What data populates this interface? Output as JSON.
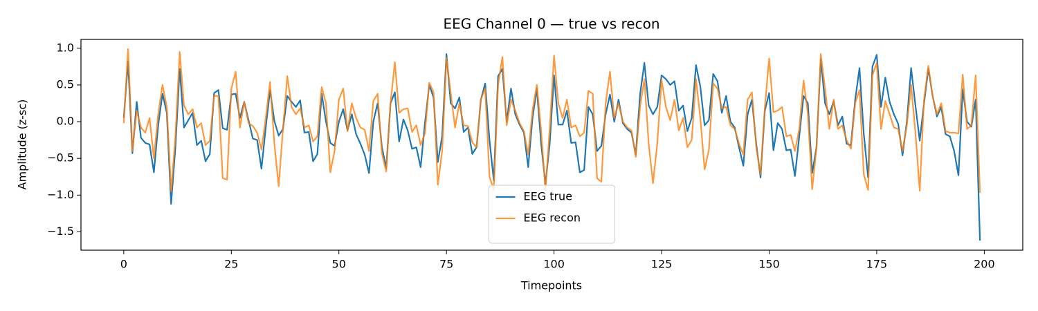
{
  "chart_data": {
    "type": "line",
    "title": "EEG Channel 0 — true vs recon",
    "xlabel": "Timepoints",
    "ylabel": "Amplitude (z-sc)",
    "x": [
      0,
      1,
      2,
      3,
      4,
      5,
      6,
      7,
      8,
      9,
      10,
      11,
      12,
      13,
      14,
      15,
      16,
      17,
      18,
      19,
      20,
      21,
      22,
      23,
      24,
      25,
      26,
      27,
      28,
      29,
      30,
      31,
      32,
      33,
      34,
      35,
      36,
      37,
      38,
      39,
      40,
      41,
      42,
      43,
      44,
      45,
      46,
      47,
      48,
      49,
      50,
      51,
      52,
      53,
      54,
      55,
      56,
      57,
      58,
      59,
      60,
      61,
      62,
      63,
      64,
      65,
      66,
      67,
      68,
      69,
      70,
      71,
      72,
      73,
      74,
      75,
      76,
      77,
      78,
      79,
      80,
      81,
      82,
      83,
      84,
      85,
      86,
      87,
      88,
      89,
      90,
      91,
      92,
      93,
      94,
      95,
      96,
      97,
      98,
      99,
      100,
      101,
      102,
      103,
      104,
      105,
      106,
      107,
      108,
      109,
      110,
      111,
      112,
      113,
      114,
      115,
      116,
      117,
      118,
      119,
      120,
      121,
      122,
      123,
      124,
      125,
      126,
      127,
      128,
      129,
      130,
      131,
      132,
      133,
      134,
      135,
      136,
      137,
      138,
      139,
      140,
      141,
      142,
      143,
      144,
      145,
      146,
      147,
      148,
      149,
      150,
      151,
      152,
      153,
      154,
      155,
      156,
      157,
      158,
      159,
      160,
      161,
      162,
      163,
      164,
      165,
      166,
      167,
      168,
      169,
      170,
      171,
      172,
      173,
      174,
      175,
      176,
      177,
      178,
      179,
      180,
      181,
      182,
      183,
      184,
      185,
      186,
      187,
      188,
      189,
      190,
      191,
      192,
      193,
      194,
      195,
      196,
      197,
      198,
      199
    ],
    "series": [
      {
        "name": "EEG true",
        "color": "#1f77b4",
        "opacity": 1,
        "values": [
          0.05,
          0.82,
          -0.43,
          0.27,
          -0.22,
          -0.29,
          -0.31,
          -0.69,
          -0.05,
          0.38,
          0.12,
          -1.12,
          -0.35,
          0.72,
          -0.08,
          0.02,
          0.12,
          -0.32,
          -0.26,
          -0.54,
          -0.44,
          0.39,
          0.43,
          -0.09,
          -0.11,
          0.37,
          0.38,
          0.05,
          0.27,
          0.02,
          -0.23,
          -0.25,
          -0.64,
          -0.08,
          0.43,
          0.01,
          -0.19,
          -0.1,
          0.35,
          0.27,
          0.2,
          0.29,
          -0.15,
          -0.14,
          -0.54,
          -0.44,
          0.38,
          0.0,
          -0.29,
          -0.33,
          0.0,
          0.17,
          -0.12,
          0.1,
          -0.17,
          -0.3,
          -0.45,
          -0.7,
          0.0,
          0.25,
          -0.35,
          -0.63,
          0.25,
          0.4,
          -0.27,
          0.03,
          -0.12,
          -0.37,
          -0.35,
          -0.62,
          -0.02,
          0.5,
          0.33,
          -0.55,
          -0.2,
          0.92,
          0.25,
          0.18,
          0.33,
          -0.14,
          -0.08,
          -0.44,
          -0.35,
          0.3,
          0.52,
          -0.25,
          -0.8,
          0.62,
          0.72,
          0.0,
          0.45,
          0.1,
          -0.04,
          -0.15,
          -0.62,
          0.05,
          0.45,
          -0.3,
          -0.85,
          -0.3,
          0.63,
          -0.04,
          -0.04,
          0.15,
          -0.29,
          -0.28,
          -0.69,
          -0.66,
          0.2,
          0.1,
          -0.4,
          -0.33,
          0.1,
          0.37,
          0.0,
          0.3,
          -0.02,
          -0.1,
          -0.15,
          -0.45,
          0.37,
          0.8,
          0.22,
          0.1,
          0.2,
          0.63,
          0.58,
          0.5,
          0.55,
          0.15,
          0.22,
          -0.13,
          0.05,
          0.77,
          0.48,
          -0.05,
          0.02,
          0.65,
          0.55,
          0.12,
          0.35,
          0.0,
          -0.08,
          -0.35,
          -0.6,
          0.1,
          0.3,
          -0.3,
          -0.76,
          0.15,
          0.39,
          -0.39,
          -0.02,
          -0.1,
          -0.39,
          -0.38,
          -0.74,
          -0.2,
          0.35,
          0.25,
          -0.7,
          -0.35,
          0.85,
          0.25,
          0.1,
          0.28,
          -0.05,
          0.07,
          -0.3,
          -0.32,
          0.3,
          0.73,
          -0.17,
          -0.76,
          0.75,
          0.91,
          0.2,
          0.6,
          0.27,
          0.1,
          -0.03,
          -0.46,
          0.0,
          0.73,
          0.22,
          -0.26,
          0.25,
          0.72,
          0.35,
          0.07,
          0.2,
          -0.17,
          -0.2,
          -0.4,
          -0.73,
          0.44,
          0.0,
          -0.07,
          0.3,
          -1.62
        ]
      },
      {
        "name": "EEG recon",
        "color": "#ff7f0e",
        "opacity": 0.8,
        "values": [
          -0.02,
          0.99,
          -0.4,
          0.15,
          -0.08,
          -0.15,
          0.05,
          -0.5,
          0.1,
          0.5,
          0.2,
          -0.95,
          -0.2,
          0.95,
          0.22,
          0.1,
          0.17,
          -0.08,
          -0.02,
          -0.32,
          -0.26,
          0.35,
          0.35,
          -0.77,
          -0.79,
          0.45,
          0.68,
          -0.08,
          0.27,
          -0.02,
          -0.06,
          -0.15,
          -0.38,
          0.05,
          0.54,
          -0.3,
          -0.88,
          -0.1,
          0.62,
          0.2,
          0.1,
          0.18,
          -0.08,
          -0.05,
          -0.27,
          -0.2,
          0.47,
          0.25,
          -0.69,
          -0.4,
          0.3,
          0.45,
          -0.13,
          0.25,
          0.05,
          -0.08,
          -0.11,
          -0.4,
          0.28,
          0.38,
          -0.43,
          -0.68,
          0.25,
          0.81,
          0.12,
          0.17,
          0.18,
          -0.14,
          -0.05,
          -0.32,
          -0.16,
          0.53,
          0.4,
          -0.86,
          -0.4,
          0.87,
          0.38,
          -0.08,
          0.25,
          -0.05,
          -0.06,
          -0.28,
          -0.35,
          0.3,
          0.45,
          -0.75,
          -0.93,
          0.5,
          0.88,
          -0.05,
          0.3,
          0.15,
          -0.02,
          -0.13,
          -0.45,
          0.15,
          0.5,
          -0.12,
          -0.93,
          -0.1,
          0.9,
          0.25,
          0.05,
          0.3,
          -0.08,
          -0.05,
          -0.2,
          -0.15,
          0.42,
          0.38,
          -0.77,
          -0.82,
          0.25,
          0.68,
          0.05,
          0.25,
          0.0,
          -0.08,
          -0.12,
          -0.48,
          0.2,
          0.58,
          -0.3,
          -0.84,
          -0.3,
          0.57,
          0.2,
          0.02,
          0.3,
          -0.12,
          0.05,
          -0.35,
          -0.25,
          0.58,
          0.05,
          -0.65,
          -0.38,
          0.52,
          0.45,
          0.18,
          0.2,
          -0.05,
          -0.1,
          -0.3,
          -0.45,
          0.3,
          0.4,
          -0.35,
          -0.72,
          0.2,
          0.86,
          0.13,
          0.15,
          0.2,
          -0.2,
          -0.18,
          -0.4,
          -0.1,
          0.56,
          0.1,
          -0.92,
          -0.36,
          0.92,
          0.45,
          -0.1,
          0.3,
          -0.1,
          -0.05,
          -0.25,
          -0.37,
          0.25,
          0.43,
          -0.72,
          -0.93,
          0.63,
          0.8,
          -0.1,
          0.28,
          0.1,
          -0.08,
          -0.1,
          -0.4,
          -0.05,
          0.5,
          -0.15,
          -0.94,
          0.3,
          0.76,
          0.35,
          0.1,
          0.25,
          -0.13,
          -0.15,
          -0.15,
          -0.16,
          0.64,
          -0.1,
          -0.05,
          0.63,
          -0.97
        ]
      }
    ],
    "xlim": [
      -9.95,
      208.95
    ],
    "xticks": [
      0,
      25,
      50,
      75,
      100,
      125,
      150,
      175,
      200
    ],
    "ylim": [
      -1.75,
      1.12
    ],
    "yticks": [
      {
        "value": -1.5,
        "label": "−1.5"
      },
      {
        "value": -1.0,
        "label": "−1.0"
      },
      {
        "value": -0.5,
        "label": "−0.5"
      },
      {
        "value": 0,
        "label": "0.0"
      },
      {
        "value": 0.5,
        "label": "0.5"
      },
      {
        "value": 1.0,
        "label": "1.0"
      }
    ],
    "grid": false,
    "legend": "lower center"
  }
}
